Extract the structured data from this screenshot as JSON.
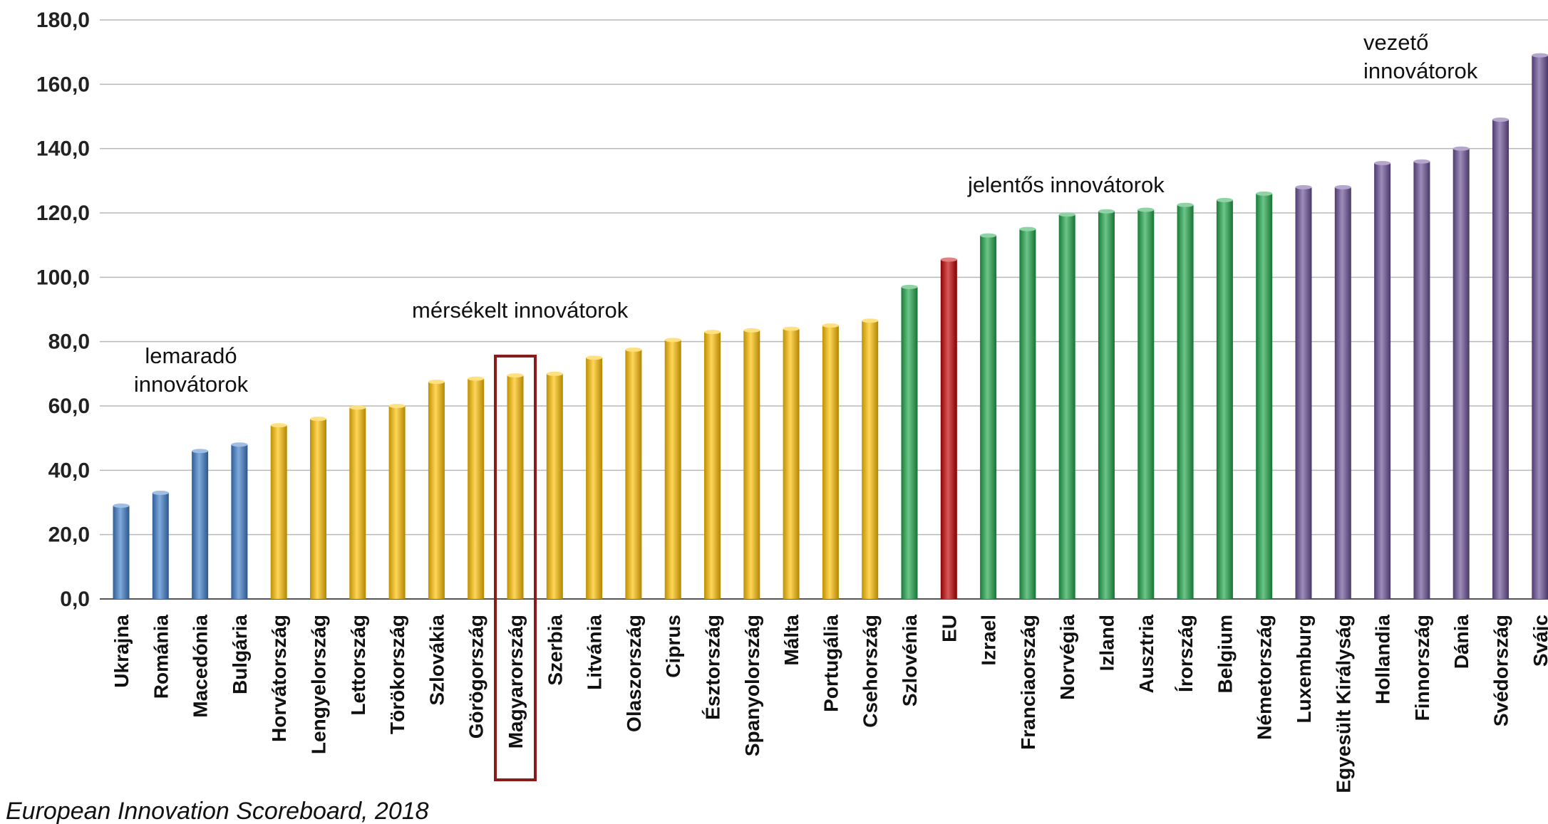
{
  "chart_data": {
    "type": "bar",
    "ylim": [
      0,
      180
    ],
    "yticks": [
      "0,0",
      "20,0",
      "40,0",
      "60,0",
      "80,0",
      "100,0",
      "120,0",
      "140,0",
      "160,0",
      "180,0"
    ],
    "grid": true,
    "categories": [
      "Ukrajna",
      "Románia",
      "Macedónia",
      "Bulgária",
      "Horvátország",
      "Lengyelország",
      "Lettország",
      "Törökország",
      "Szlovákia",
      "Görögország",
      "Magyarország",
      "Szerbia",
      "Litvánia",
      "Olaszország",
      "Ciprus",
      "Észtország",
      "Spanyolország",
      "Málta",
      "Portugália",
      "Csehország",
      "Szlovénia",
      "EU",
      "Izrael",
      "Franciaország",
      "Norvégia",
      "Izland",
      "Ausztria",
      "Írország",
      "Belgium",
      "Németország",
      "Luxemburg",
      "Egyesült Királyság",
      "Hollandia",
      "Finnország",
      "Dánia",
      "Svédország",
      "Svájc"
    ],
    "values": [
      29,
      33,
      46,
      48,
      54,
      56,
      59.5,
      60,
      67.5,
      68.5,
      69.5,
      70,
      75,
      77.5,
      80.5,
      83,
      83.5,
      84,
      85,
      86.5,
      97,
      105.5,
      113,
      115,
      119.5,
      120.5,
      121,
      122.5,
      124,
      126,
      128,
      128,
      135.5,
      136,
      140,
      149,
      169
    ],
    "groups": [
      "lemarado",
      "lemarado",
      "lemarado",
      "lemarado",
      "merseklet",
      "merseklet",
      "merseklet",
      "merseklet",
      "merseklet",
      "merseklet",
      "merseklet",
      "merseklet",
      "merseklet",
      "merseklet",
      "merseklet",
      "merseklet",
      "merseklet",
      "merseklet",
      "merseklet",
      "merseklet",
      "jelentos",
      "eu",
      "jelentos",
      "jelentos",
      "jelentos",
      "jelentos",
      "jelentos",
      "jelentos",
      "jelentos",
      "jelentos",
      "vezeto",
      "vezeto",
      "vezeto",
      "vezeto",
      "vezeto",
      "vezeto",
      "vezeto"
    ],
    "colors": {
      "lemarado": "#3d7cc9",
      "merseklet": "#ffc000",
      "jelentos": "#1fa64a",
      "eu": "#c00000",
      "vezeto": "#6a4f96"
    },
    "highlight_category": "Magyarország",
    "highlight_color": "#8b1a1a",
    "annotations": [
      {
        "key": "lemarado",
        "lines": [
          "lemaradó",
          "innovátorok"
        ]
      },
      {
        "key": "merseklet",
        "lines": [
          "mérsékelt innovátorok"
        ]
      },
      {
        "key": "jelentos",
        "lines": [
          "jelentős innovátorok"
        ]
      },
      {
        "key": "vezeto",
        "lines": [
          "vezető",
          "innovátorok"
        ]
      }
    ],
    "source": "European Innovation Scoreboard, 2018"
  }
}
